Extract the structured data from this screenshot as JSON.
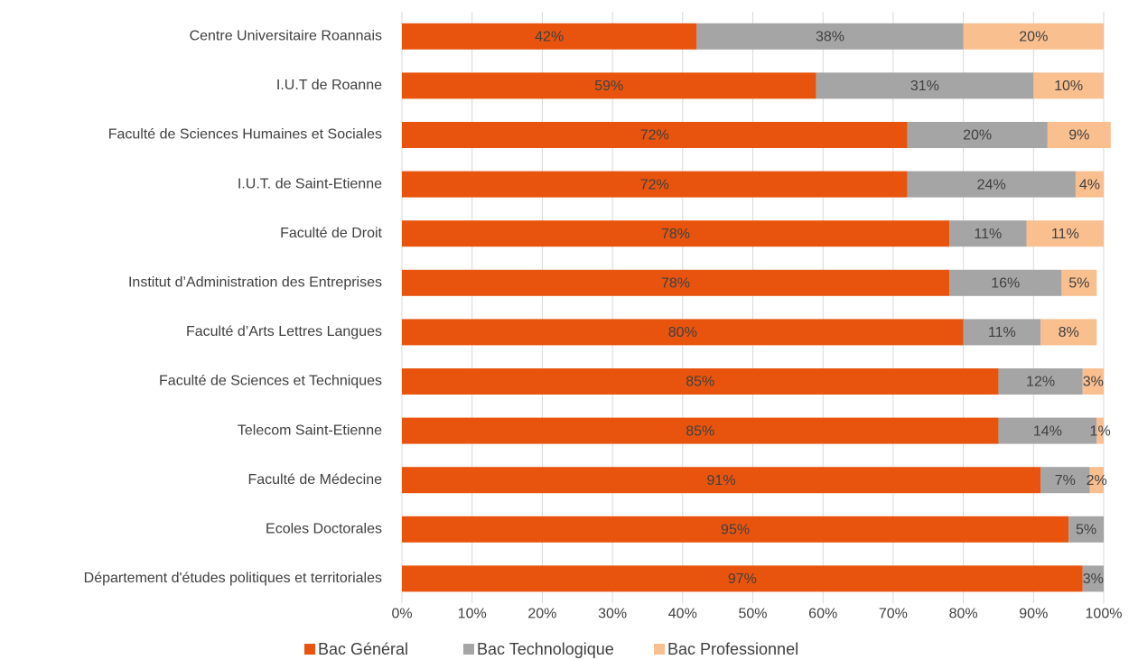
{
  "chart_data": {
    "type": "stacked_barh",
    "categories": [
      "Centre Universitaire Roannais",
      "I.U.T de Roanne",
      "Faculté de Sciences Humaines et Sociales",
      "I.U.T. de Saint-Etienne",
      "Faculté de Droit",
      "Institut d’Administration des Entreprises",
      "Faculté d’Arts Lettres Langues",
      "Faculté de Sciences et Techniques",
      "Telecom Saint-Etienne",
      "Faculté de Médecine",
      "Ecoles Doctorales",
      "Département d'études politiques et territoriales"
    ],
    "series": [
      {
        "name": "Bac Général",
        "color": "#e8540e",
        "values": [
          42,
          59,
          72,
          72,
          78,
          78,
          80,
          85,
          85,
          91,
          95,
          97
        ],
        "value_labels": [
          "42%",
          "59%",
          "72%",
          "72%",
          "78%",
          "78%",
          "80%",
          "85%",
          "85%",
          "91%",
          "95%",
          "97%"
        ]
      },
      {
        "name": "Bac Technologique",
        "color": "#a5a5a5",
        "values": [
          38,
          31,
          20,
          24,
          11,
          16,
          11,
          12,
          14,
          7,
          5,
          3
        ],
        "value_labels": [
          "38%",
          "31%",
          "20%",
          "24%",
          "11%",
          "16%",
          "11%",
          "12%",
          "14%",
          "7%",
          "5%",
          "3%"
        ]
      },
      {
        "name": "Bac Professionnel",
        "color": "#f9bf8f",
        "values": [
          20,
          10,
          9,
          4,
          11,
          5,
          8,
          3,
          1,
          2,
          null,
          null
        ],
        "value_labels": [
          "20%",
          "10%",
          "9%",
          "4%",
          "11%",
          "5%",
          "8%",
          "3%",
          "1%",
          "2%",
          null,
          null
        ]
      }
    ],
    "xlim": [
      0,
      100
    ],
    "xticks": [
      {
        "value": 0,
        "label": "0%"
      },
      {
        "value": 10,
        "label": "10%"
      },
      {
        "value": 20,
        "label": "20%"
      },
      {
        "value": 30,
        "label": "30%"
      },
      {
        "value": 40,
        "label": "40%"
      },
      {
        "value": 50,
        "label": "50%"
      },
      {
        "value": 60,
        "label": "60%"
      },
      {
        "value": 70,
        "label": "70%"
      },
      {
        "value": 80,
        "label": "80%"
      },
      {
        "value": 90,
        "label": "90%"
      },
      {
        "value": 100,
        "label": "100%"
      }
    ],
    "grid": true
  }
}
